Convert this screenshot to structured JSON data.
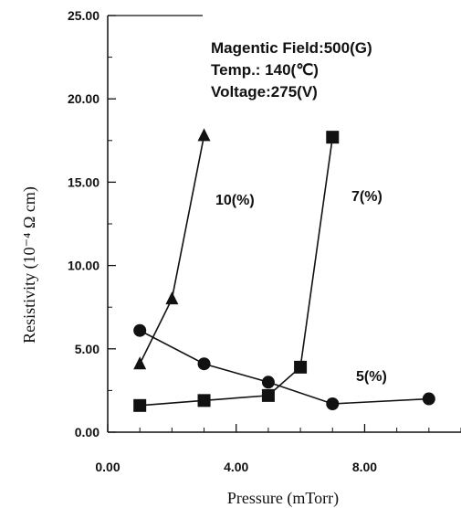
{
  "chart_data": {
    "type": "line",
    "xlabel": "Pressure (mTorr)",
    "ylabel": "Resistivity (10⁻⁴ Ω cm)",
    "xlim": [
      0,
      11
    ],
    "ylim": [
      0,
      25
    ],
    "x_ticks": [
      "0.00",
      "4.00",
      "8.00"
    ],
    "x_tick_values": [
      0,
      4,
      8
    ],
    "y_ticks": [
      "0.00",
      "5.00",
      "10.00",
      "15.00",
      "20.00",
      "25.00"
    ],
    "y_tick_values": [
      0,
      5,
      10,
      15,
      20,
      25
    ],
    "grid": false,
    "annotations": [
      "Magentic Field:500(G)",
      "Temp.: 140(℃)",
      "Voltage:275(V)"
    ],
    "series": [
      {
        "name": "10(%)",
        "marker": "triangle",
        "x": [
          1,
          2,
          3
        ],
        "y": [
          4.1,
          8.0,
          17.8
        ]
      },
      {
        "name": "7(%)",
        "marker": "square",
        "x": [
          1,
          3,
          5,
          6,
          7
        ],
        "y": [
          1.6,
          1.9,
          2.2,
          3.9,
          17.7
        ]
      },
      {
        "name": "5(%)",
        "marker": "circle",
        "x": [
          1,
          3,
          5,
          7,
          10
        ],
        "y": [
          6.1,
          4.1,
          3.0,
          1.7,
          2.0
        ]
      }
    ]
  }
}
